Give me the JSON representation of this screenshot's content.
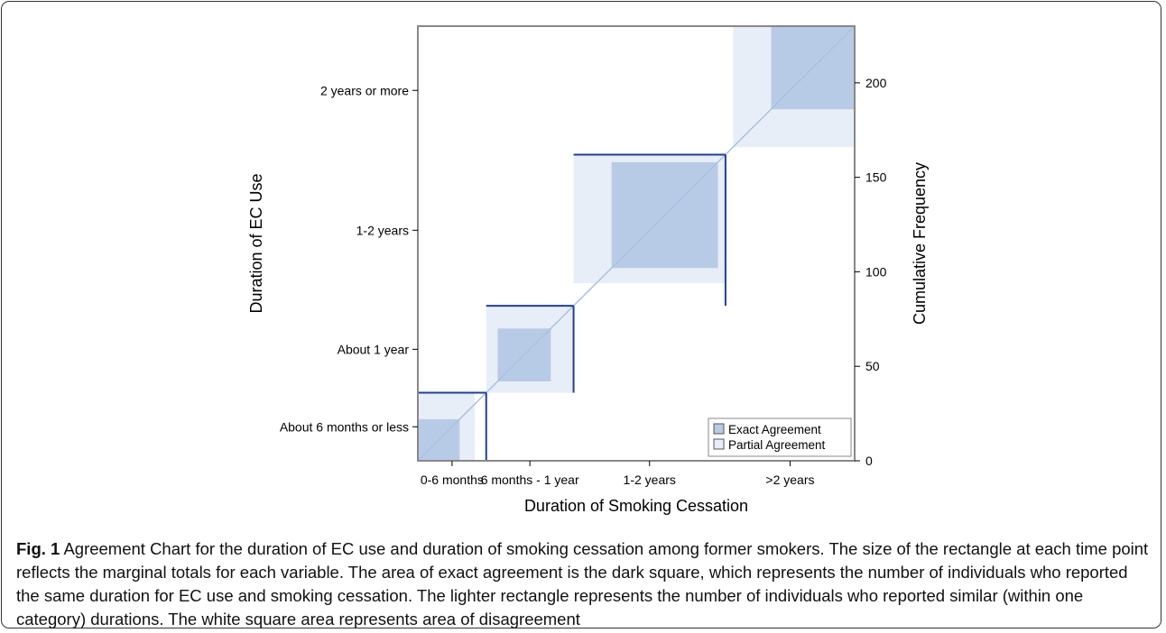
{
  "chart_data": {
    "type": "agreement",
    "xlabel": "Duration of Smoking Cessation",
    "ylabel": "Duration of EC Use",
    "y2label": "Cumulative Frequency",
    "x_categories": [
      "0-6 months",
      "6 months - 1 year",
      "1-2 years",
      ">2 years"
    ],
    "y_categories": [
      "About 6 months or less",
      "About 1 year",
      "1-2 years",
      "2 years or more"
    ],
    "x_cumulative": [
      0,
      36,
      82,
      162,
      230
    ],
    "y_cumulative": [
      0,
      36,
      82,
      162,
      230
    ],
    "exact_agreement": [
      {
        "x": [
          0,
          22
        ],
        "y": [
          0,
          22
        ]
      },
      {
        "x": [
          42,
          70
        ],
        "y": [
          42,
          70
        ]
      },
      {
        "x": [
          102,
          158
        ],
        "y": [
          102,
          158
        ]
      },
      {
        "x": [
          186,
          230
        ],
        "y": [
          186,
          230
        ]
      }
    ],
    "partial_agreement": [
      {
        "x": [
          0,
          30
        ],
        "y": [
          0,
          36
        ]
      },
      {
        "x": [
          36,
          82
        ],
        "y": [
          36,
          82
        ]
      },
      {
        "x": [
          82,
          162
        ],
        "y": [
          94,
          162
        ]
      },
      {
        "x": [
          166,
          230
        ],
        "y": [
          166,
          230
        ]
      }
    ],
    "y2_ticks": [
      0,
      50,
      100,
      150,
      200
    ],
    "ylim": [
      0,
      230
    ],
    "legend": {
      "position": "bottom-right",
      "items": [
        {
          "label": "Exact Agreement",
          "color": "#b8cbe6"
        },
        {
          "label": "Partial Agreement",
          "color": "#e8eef8"
        }
      ]
    },
    "colors": {
      "exact": "#b8cbe6",
      "partial": "#e8eef8",
      "boundary": "#1f3f99",
      "diagonal": "#a9c1e3",
      "frame": "#888888"
    }
  },
  "caption": {
    "label": "Fig. 1",
    "text": "Agreement Chart for the duration of EC use and duration of smoking cessation among former smokers. The size of the rectangle at each time point reflects the marginal totals for each variable. The area of exact agreement is the dark square, which represents the number of individuals who reported the same duration for EC use and smoking cessation. The lighter rectangle represents the number of individuals who reported similar (within one category) durations. The white square area represents area of disagreement"
  }
}
